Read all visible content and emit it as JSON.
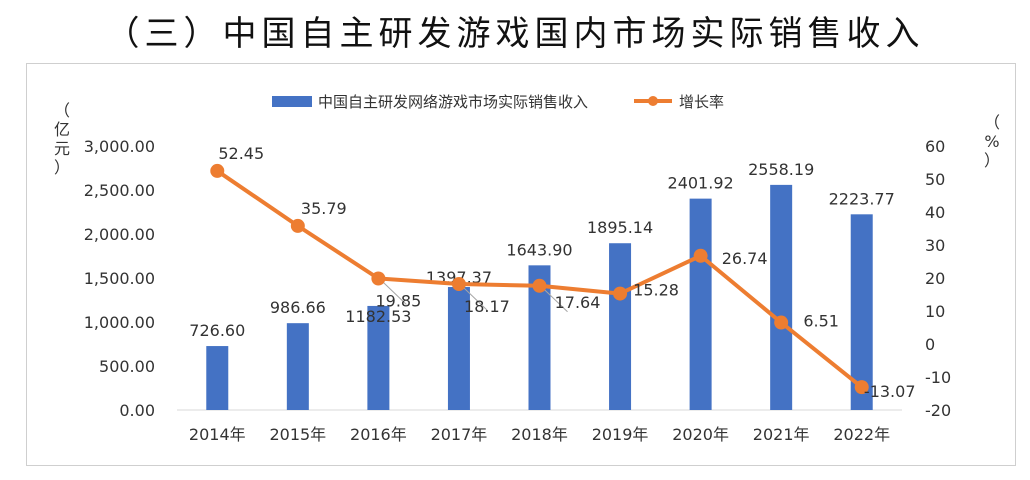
{
  "page": {
    "heading": "（三）中国自主研发游戏国内市场实际销售收入"
  },
  "colors": {
    "bar": "#4472C4",
    "line": "#ED7D31",
    "text": "#333333",
    "axis": "#595959",
    "grid": "#d9d9d9"
  },
  "chart_data": {
    "type": "bar",
    "title": "",
    "categories": [
      "2014年",
      "2015年",
      "2016年",
      "2017年",
      "2018年",
      "2019年",
      "2020年",
      "2021年",
      "2022年"
    ],
    "series": [
      {
        "name": "中国自主研发网络游戏市场实际销售收入",
        "type": "bar",
        "axis": "left",
        "values": [
          726.6,
          986.66,
          1182.53,
          1397.37,
          1643.9,
          1895.14,
          2401.92,
          2558.19,
          2223.77
        ],
        "labels": [
          "726.60",
          "986.66",
          "1182.53",
          "1397.37",
          "1643.90",
          "1895.14",
          "2401.92",
          "2558.19",
          "2223.77"
        ]
      },
      {
        "name": "增长率",
        "type": "line",
        "axis": "right",
        "values": [
          52.45,
          35.79,
          19.85,
          18.17,
          17.64,
          15.28,
          26.74,
          6.51,
          -13.07
        ],
        "labels": [
          "52.45",
          "35.79",
          "19.85",
          "18.17",
          "17.64",
          "15.28",
          "26.74",
          "6.51",
          "-13.07"
        ]
      }
    ],
    "y_left": {
      "label": "（亿元）",
      "min": 0,
      "max": 3000,
      "ticks": [
        "0.00",
        "500.00",
        "1,000.00",
        "1,500.00",
        "2,000.00",
        "2,500.00",
        "3,000.00"
      ]
    },
    "y_right": {
      "label": "（%）",
      "min": -20,
      "max": 60,
      "ticks": [
        "-20",
        "-10",
        "0",
        "10",
        "20",
        "30",
        "40",
        "50",
        "60"
      ]
    },
    "legend_position": "top",
    "grid": false
  }
}
